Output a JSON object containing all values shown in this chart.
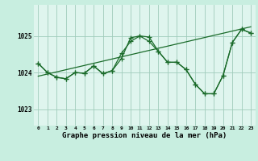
{
  "background_color": "#c8eee0",
  "plot_bg_color": "#dff5ee",
  "grid_color": "#a0ccbb",
  "line_color": "#1a6b2a",
  "xlabel": "Graphe pression niveau de la mer (hPa)",
  "xlabel_fontsize": 6.5,
  "ylabel_ticks": [
    1023,
    1024,
    1025
  ],
  "xlim": [
    -0.5,
    23.5
  ],
  "ylim": [
    1022.55,
    1025.85
  ],
  "xticks": [
    0,
    1,
    2,
    3,
    4,
    5,
    6,
    7,
    8,
    9,
    10,
    11,
    12,
    13,
    14,
    15,
    16,
    17,
    18,
    19,
    20,
    21,
    22,
    23
  ],
  "series1_x": [
    0,
    1,
    2,
    3,
    4,
    5,
    6,
    7,
    8,
    9,
    10,
    11,
    12,
    13,
    14,
    15,
    16,
    17,
    18,
    19,
    20,
    21,
    22,
    23
  ],
  "series1_y": [
    1024.25,
    1024.0,
    1023.87,
    1023.83,
    1024.0,
    1023.98,
    1024.18,
    1023.97,
    1024.05,
    1024.38,
    1024.95,
    1025.0,
    1024.97,
    1024.58,
    1024.28,
    1024.28,
    1024.08,
    1023.68,
    1023.42,
    1023.42,
    1023.92,
    1024.82,
    1025.18,
    1025.08
  ],
  "series2_x": [
    0,
    1,
    2,
    3,
    4,
    5,
    6,
    7,
    8,
    9,
    10,
    11,
    12,
    13,
    14,
    15,
    16,
    17,
    18,
    19,
    20,
    21,
    22,
    23
  ],
  "series2_y": [
    1024.25,
    1024.0,
    1023.87,
    1023.83,
    1024.0,
    1023.98,
    1024.18,
    1023.97,
    1024.05,
    1024.52,
    1024.85,
    1025.0,
    1024.85,
    1024.58,
    1024.28,
    1024.28,
    1024.08,
    1023.68,
    1023.42,
    1023.42,
    1023.92,
    1024.82,
    1025.18,
    1025.08
  ],
  "series3_x": [
    0,
    23
  ],
  "series3_y": [
    1023.9,
    1025.25
  ]
}
